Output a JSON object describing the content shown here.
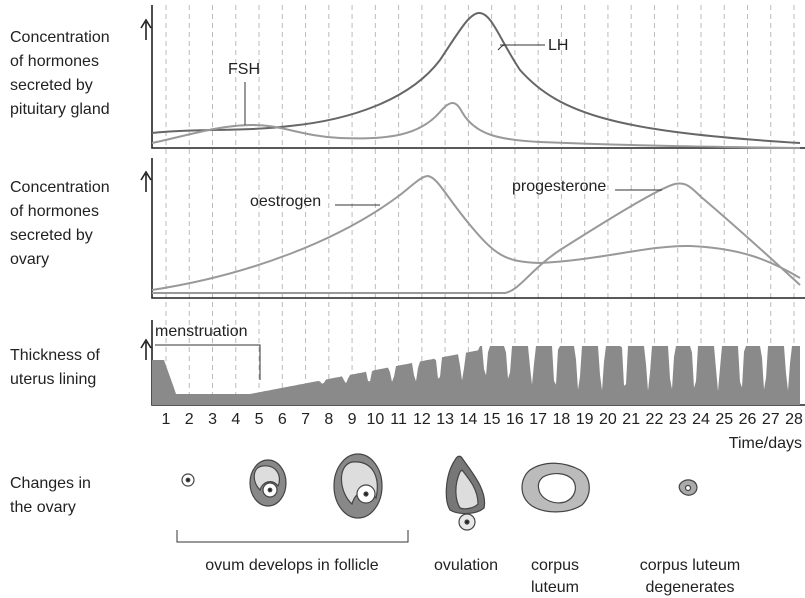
{
  "panels": [
    {
      "label_lines": [
        "Concentration",
        "of hormones",
        "secreted by",
        "pituitary gland"
      ]
    },
    {
      "label_lines": [
        "Concentration",
        "of hormones",
        "secreted by",
        "ovary"
      ]
    },
    {
      "label_lines": [
        "Thickness of",
        "uterus lining"
      ]
    }
  ],
  "curve_labels": {
    "fsh": "FSH",
    "lh": "LH",
    "oestrogen": "oestrogen",
    "progesterone": "progesterone",
    "menstruation": "menstruation"
  },
  "days": [
    1,
    2,
    3,
    4,
    5,
    6,
    7,
    8,
    9,
    10,
    11,
    12,
    13,
    14,
    15,
    16,
    17,
    18,
    19,
    20,
    21,
    22,
    23,
    24,
    25,
    26,
    27,
    28
  ],
  "x_axis_label": "Time/days",
  "ovary": {
    "label_lines": [
      "Changes in",
      "the ovary"
    ],
    "stages": [
      [
        "ovum develops in follicle"
      ],
      [
        "ovulation"
      ],
      [
        "corpus",
        "luteum"
      ],
      [
        "corpus luteum",
        "degenerates"
      ]
    ]
  }
}
